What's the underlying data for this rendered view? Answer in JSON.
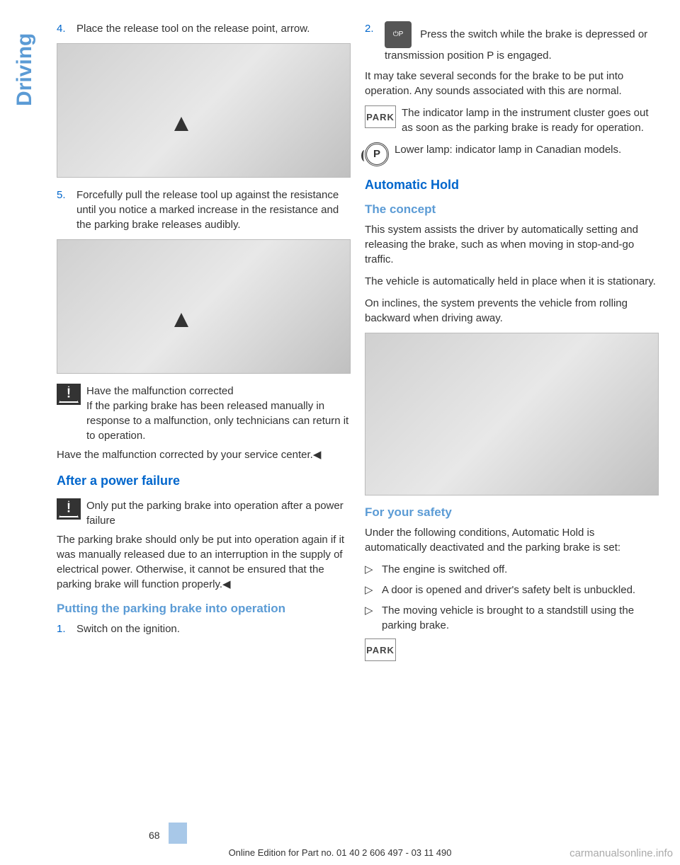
{
  "side_tab": "Driving",
  "left_col": {
    "step4_num": "4.",
    "step4_text": "Place the release tool on the release point, arrow.",
    "step5_num": "5.",
    "step5_text": "Forcefully pull the release tool up against the resistance until you notice a marked increase in the resistance and the parking brake releases audibly.",
    "warn1_title": "Have the malfunction corrected",
    "warn1_body": "If the parking brake has been released manually in response to a malfunction, only technicians can return it to operation.",
    "warn1_after": "Have the malfunction corrected by your service center.◀",
    "h2_after_power": "After a power failure",
    "warn2_title": "Only put the parking brake into operation after a power failure",
    "warn2_after": "The parking brake should only be put into operation again if it was manually released due to an interruption in the supply of electrical power. Otherwise, it cannot be ensured that the parking brake will function properly.◀",
    "h3_putting": "Putting the parking brake into operation",
    "step1_num": "1.",
    "step1_text": "Switch on the ignition."
  },
  "right_col": {
    "step2_num": "2.",
    "step2_icon": "⏻P",
    "step2_text": "Press the switch while the brake is depressed or transmission position P is engaged.",
    "para_take": "It may take several seconds for the brake to be put into operation. Any sounds associated with this are normal.",
    "park_label": "PARK",
    "park_text": "The indicator lamp in the instrument cluster goes out as soon as the parking brake is ready for operation.",
    "circle_text": "Lower lamp: indicator lamp in Canadian models.",
    "h2_auto": "Automatic Hold",
    "h3_concept": "The concept",
    "concept_p1": "This system assists the driver by automatically setting and releasing the brake, such as when moving in stop-and-go traffic.",
    "concept_p2": "The vehicle is automatically held in place when it is stationary.",
    "concept_p3": "On inclines, the system prevents the vehicle from rolling backward when driving away.",
    "h3_safety": "For your safety",
    "safety_intro": "Under the following conditions, Automatic Hold is automatically deactivated and the parking brake is set:",
    "bullets": [
      "The engine is switched off.",
      "A door is opened and driver's safety belt is unbuckled.",
      "The moving vehicle is brought to a standstill using the parking brake."
    ],
    "park_label2": "PARK"
  },
  "footer": {
    "page_num": "68",
    "edition": "Online Edition for Part no. 01 40 2 606 497 - 03 11 490",
    "watermark": "carmanualsonline.info"
  }
}
